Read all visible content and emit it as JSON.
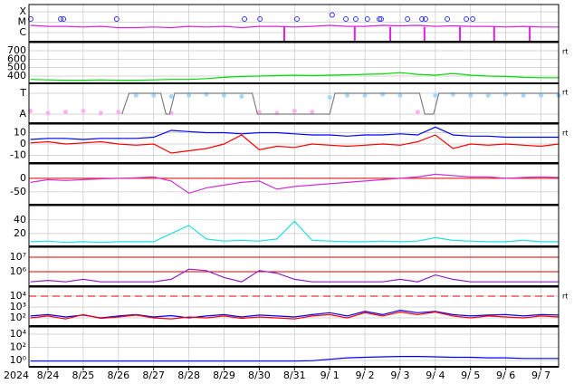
{
  "chart_data": [
    {
      "type": "line",
      "log": true,
      "ylim": [
        1.35e-07,
        0.0005
      ],
      "yticks": [
        {
          "value": 0.0001,
          "label": "X"
        },
        {
          "value": 1e-05,
          "label": "M"
        },
        {
          "value": 1e-06,
          "label": "C"
        }
      ],
      "series": [
        {
          "type": "line",
          "color": "#e020e0",
          "values": [
            5e-06,
            4e-06,
            4e-06,
            3.5e-06,
            4e-06,
            3e-06,
            3e-06,
            3.5e-06,
            3e-06,
            4e-06,
            3.5e-06,
            4e-06,
            3e-06,
            4e-06,
            4e-06,
            3.5e-06,
            4e-06,
            5e-06,
            4e-06,
            4e-06,
            5e-06,
            4.5e-06,
            5e-06,
            4e-06,
            4.5e-06,
            4e-06,
            4e-06,
            3.5e-06,
            4e-06,
            3.5e-06,
            3.5e-06
          ]
        },
        {
          "type": "spike",
          "color": "#e020e0",
          "x": [
            6.71,
            8.71,
            9.72,
            10.69,
            11.7,
            12.67,
            13.68
          ]
        },
        {
          "type": "scatter",
          "color": "#3030ff",
          "x": [
            -0.49,
            0.36,
            0.44,
            1.95,
            5.58,
            6.02,
            7.07,
            8.07,
            8.46,
            8.74,
            9.07,
            9.41,
            9.46,
            10.21,
            10.62,
            10.72,
            11.34,
            11.88,
            12.06
          ],
          "values": [
            2e-05,
            2e-05,
            2e-05,
            2e-05,
            2e-05,
            2e-05,
            2e-05,
            5e-05,
            2e-05,
            2e-05,
            2e-05,
            2e-05,
            2e-05,
            2e-05,
            2e-05,
            2e-05,
            2e-05,
            2e-05,
            2e-05
          ]
        }
      ]
    },
    {
      "type": "line",
      "ylim": [
        314,
        796
      ],
      "yticks": [
        700,
        600,
        500,
        400
      ],
      "right_label": "rt",
      "series": [
        {
          "type": "line",
          "color": "#00dd00",
          "values": [
            360,
            355,
            350,
            350,
            355,
            350,
            350,
            355,
            360,
            360,
            370,
            385,
            395,
            400,
            405,
            410,
            405,
            410,
            415,
            420,
            425,
            440,
            420,
            410,
            430,
            410,
            400,
            395,
            385,
            380,
            380
          ]
        }
      ]
    },
    {
      "type": "line",
      "ylim": [
        -1.87,
        1.96
      ],
      "yticks": [
        {
          "value": 1,
          "label": "T"
        },
        {
          "value": -1,
          "label": "A"
        }
      ],
      "right_label": "rt",
      "series": [
        {
          "type": "scatter",
          "color": "#a0d8ff",
          "values": [
            null,
            null,
            null,
            null,
            null,
            null,
            0.8,
            0.8,
            0.7,
            0.8,
            0.9,
            0.8,
            0.7,
            null,
            null,
            null,
            null,
            0.6,
            0.8,
            0.8,
            0.9,
            0.8,
            null,
            0.8,
            0.9,
            0.8,
            0.8,
            0.9,
            0.8,
            0.8,
            0.8
          ]
        },
        {
          "type": "scatter",
          "color": "#ffb0f0",
          "values": [
            -0.7,
            -0.9,
            -0.8,
            -0.7,
            -0.9,
            -0.8,
            null,
            null,
            -0.9,
            null,
            null,
            null,
            null,
            -0.8,
            -0.9,
            -0.7,
            -0.8,
            null,
            null,
            null,
            null,
            null,
            -0.8,
            null,
            null,
            null,
            null,
            null,
            null,
            null,
            null
          ]
        },
        {
          "type": "line",
          "color": "#808080",
          "x": [
            2.1,
            2.3,
            3.2,
            3.35,
            3.45,
            3.6,
            5.8,
            5.95,
            8.0,
            8.15,
            10.55,
            10.7,
            10.95,
            11.1,
            14.5
          ],
          "values": [
            -1,
            1,
            1,
            -1,
            -1,
            1,
            1,
            -1,
            -1,
            1,
            1,
            -1,
            -1,
            1,
            1
          ]
        }
      ]
    },
    {
      "type": "line",
      "ylim": [
        -16.8,
        17.6
      ],
      "yticks": [
        10,
        0,
        -10
      ],
      "right_label": "rt",
      "series": [
        {
          "type": "line",
          "color": "#0000ff",
          "values": [
            4,
            5,
            5,
            4,
            5,
            5,
            5,
            6,
            12,
            11,
            10,
            10,
            9,
            10,
            10,
            9,
            8,
            8,
            7,
            8,
            8,
            9,
            8,
            15,
            8,
            7,
            7,
            6,
            6,
            6,
            6
          ]
        },
        {
          "type": "line",
          "color": "#ff0000",
          "values": [
            1,
            2,
            0,
            1,
            2,
            0,
            -1,
            0,
            -8,
            -6,
            -4,
            0,
            8,
            -5,
            -2,
            -3,
            0,
            -1,
            -2,
            -1,
            0,
            -1,
            2,
            8,
            -4,
            0,
            -1,
            0,
            -1,
            -2,
            0
          ]
        }
      ]
    },
    {
      "type": "line",
      "ylim": [
        -97,
        53
      ],
      "yticks": [
        0,
        -50
      ],
      "thresholds": [
        0
      ],
      "threshold_color": "#e00000",
      "series": [
        {
          "type": "line",
          "color": "#d030d0",
          "values": [
            -15,
            -5,
            -8,
            -5,
            -2,
            0,
            2,
            5,
            -10,
            -55,
            -35,
            -25,
            -15,
            -10,
            -40,
            -30,
            -25,
            -20,
            -15,
            -10,
            -5,
            0,
            5,
            15,
            10,
            5,
            5,
            0,
            3,
            5,
            3
          ]
        }
      ]
    },
    {
      "type": "line",
      "ylim": [
        1.3,
        61
      ],
      "yticks": [
        40,
        20
      ],
      "series": [
        {
          "type": "line",
          "color": "#20e0e0",
          "values": [
            8,
            9,
            7,
            8,
            7,
            8,
            8,
            8,
            20,
            32,
            12,
            9,
            10,
            9,
            12,
            38,
            10,
            9,
            8,
            8,
            9,
            8,
            9,
            14,
            10,
            9,
            8,
            8,
            10,
            8,
            8
          ]
        }
      ]
    },
    {
      "type": "line",
      "log": true,
      "ylim": [
        100000.0,
        49000000.0
      ],
      "yticks": [
        {
          "value": 10000000,
          "label": "10⁷"
        },
        {
          "value": 1000000,
          "label": "10⁶"
        }
      ],
      "thresholds": [
        10000000,
        1000000
      ],
      "threshold_color": "#e00000",
      "series": [
        {
          "type": "line",
          "color": "#9020c0",
          "values": [
            200000.0,
            250000.0,
            200000.0,
            300000.0,
            200000.0,
            200000.0,
            200000.0,
            200000.0,
            300000.0,
            1500000.0,
            1200000.0,
            400000.0,
            200000.0,
            1200000.0,
            800000.0,
            300000.0,
            200000.0,
            200000.0,
            200000.0,
            200000.0,
            200000.0,
            300000.0,
            200000.0,
            600000.0,
            300000.0,
            200000.0,
            200000.0,
            200000.0,
            200000.0,
            200000.0,
            200000.0
          ]
        }
      ]
    },
    {
      "type": "line",
      "log": true,
      "ylim": [
        17.8,
        67600
      ],
      "right_label": "rt",
      "yticks": [
        {
          "value": 10000,
          "label": "10⁴"
        },
        {
          "value": 1000,
          "label": "10³"
        },
        {
          "value": 100,
          "label": "10²"
        }
      ],
      "thresholds": [
        10000
      ],
      "threshold_color": "#e00000",
      "threshold_dashed": true,
      "series": [
        {
          "type": "line",
          "color": "#0000ff",
          "values": [
            150,
            200,
            120,
            180,
            100,
            150,
            200,
            120,
            160,
            100,
            150,
            200,
            120,
            180,
            150,
            120,
            200,
            300,
            150,
            400,
            200,
            500,
            300,
            400,
            200,
            150,
            180,
            200,
            150,
            200,
            180
          ]
        },
        {
          "type": "line",
          "color": "#ff0000",
          "values": [
            100,
            150,
            80,
            200,
            90,
            120,
            180,
            100,
            80,
            120,
            100,
            150,
            90,
            120,
            100,
            80,
            150,
            200,
            100,
            300,
            150,
            350,
            200,
            350,
            150,
            100,
            150,
            120,
            100,
            150,
            120
          ]
        }
      ]
    },
    {
      "type": "line",
      "log": true,
      "ylim": [
        0.107,
        126000
      ],
      "yticks": [
        {
          "value": 10000,
          "label": "10⁴"
        },
        {
          "value": 100,
          "label": "10²"
        },
        {
          "value": 1,
          "label": "10⁰"
        }
      ],
      "series": [
        {
          "type": "line",
          "color": "#0000ff",
          "values": [
            0.8,
            0.8,
            0.8,
            0.8,
            0.8,
            0.8,
            0.8,
            0.8,
            0.8,
            0.8,
            0.8,
            0.8,
            0.8,
            0.8,
            0.8,
            0.8,
            0.9,
            1.5,
            2.5,
            3,
            3.5,
            4,
            4,
            3.5,
            3,
            3,
            2.5,
            2.5,
            2,
            2,
            2
          ]
        }
      ]
    }
  ],
  "x": [
    -0.5,
    0,
    0.5,
    1,
    1.5,
    2,
    2.5,
    3,
    3.5,
    4,
    4.5,
    5,
    5.5,
    6,
    6.5,
    7,
    7.5,
    8,
    8.5,
    9,
    9.5,
    10,
    10.5,
    11,
    11.5,
    12,
    12.5,
    13,
    13.5,
    14,
    14.5
  ],
  "xlim": [
    -0.54,
    14.5
  ],
  "xticks": [
    {
      "value": 0,
      "label": "8/24"
    },
    {
      "value": 1,
      "label": "8/25"
    },
    {
      "value": 2,
      "label": "8/26"
    },
    {
      "value": 3,
      "label": "8/27"
    },
    {
      "value": 4,
      "label": "8/28"
    },
    {
      "value": 5,
      "label": "8/29"
    },
    {
      "value": 6,
      "label": "8/30"
    },
    {
      "value": 7,
      "label": "8/31"
    },
    {
      "value": 8,
      "label": "9/ 1"
    },
    {
      "value": 9,
      "label": "9/ 2"
    },
    {
      "value": 10,
      "label": "9/ 3"
    },
    {
      "value": 11,
      "label": "9/ 4"
    },
    {
      "value": 12,
      "label": "9/ 5"
    },
    {
      "value": 13,
      "label": "9/ 6"
    },
    {
      "value": 14,
      "label": "9/ 7"
    }
  ],
  "year_label": "2024"
}
